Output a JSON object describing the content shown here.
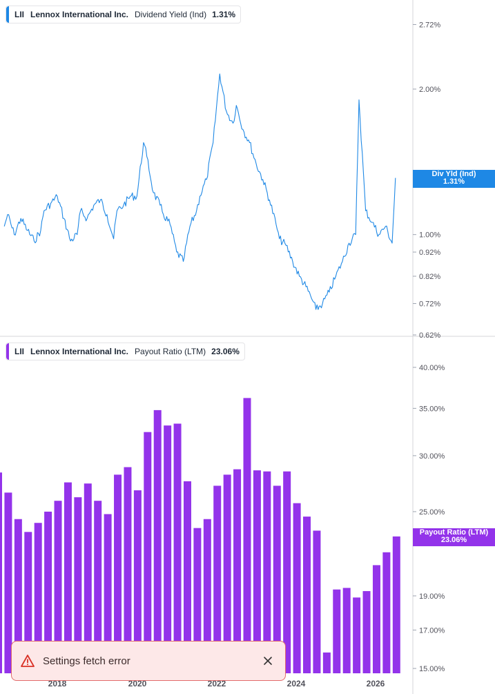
{
  "chart_data": [
    {
      "type": "line",
      "legend": {
        "ticker": "LII",
        "company": "Lennox International Inc.",
        "metric": "Dividend Yield (Ind)",
        "value": "1.31%"
      },
      "yaxis_scale": "log",
      "ylim": [
        0.62,
        3.0
      ],
      "y_ticks": [
        "2.72%",
        "2.00%",
        "1.00%",
        "0.92%",
        "0.82%",
        "0.72%",
        "0.62%"
      ],
      "y_tick_values": [
        2.72,
        2.0,
        1.0,
        0.92,
        0.82,
        0.72,
        0.62
      ],
      "last_value_tag": {
        "label": "Div Yld (Ind)",
        "value": "1.31%"
      },
      "series": [
        {
          "color": "#1e88e5",
          "x": [
            "2016-09",
            "2016-10",
            "2016-12",
            "2017-02",
            "2017-04",
            "2017-06",
            "2017-08",
            "2017-09",
            "2017-11",
            "2018-01",
            "2018-03",
            "2018-05",
            "2018-07",
            "2018-08",
            "2018-10",
            "2018-12",
            "2019-02",
            "2019-04",
            "2019-06",
            "2019-07",
            "2019-09",
            "2019-11",
            "2020-01",
            "2020-03",
            "2020-04",
            "2020-06",
            "2020-08",
            "2020-09",
            "2020-11",
            "2021-01",
            "2021-03",
            "2021-05",
            "2021-07",
            "2021-08",
            "2021-10",
            "2021-12",
            "2022-02",
            "2022-04",
            "2022-06",
            "2022-07",
            "2022-09",
            "2022-11",
            "2023-01",
            "2023-03",
            "2023-05",
            "2023-07",
            "2023-08",
            "2023-10",
            "2023-12",
            "2024-02",
            "2024-04",
            "2024-06",
            "2024-07",
            "2024-09",
            "2024-11",
            "2025-01",
            "2025-03",
            "2025-05",
            "2025-07",
            "2025-08",
            "2025-10",
            "2025-12",
            "2026-02",
            "2026-04",
            "2026-06",
            "2026-07"
          ],
          "values": [
            1.04,
            1.1,
            1.0,
            1.08,
            1.02,
            0.97,
            1.02,
            1.12,
            1.16,
            1.2,
            1.08,
            0.97,
            1.0,
            1.12,
            1.08,
            1.15,
            1.18,
            1.1,
            0.98,
            1.12,
            1.15,
            1.2,
            1.2,
            1.55,
            1.45,
            1.22,
            1.15,
            1.1,
            1.05,
            0.92,
            0.88,
            1.04,
            1.12,
            1.2,
            1.3,
            1.55,
            2.15,
            1.8,
            1.7,
            1.85,
            1.65,
            1.55,
            1.4,
            1.3,
            1.18,
            1.05,
            0.98,
            0.95,
            0.88,
            0.82,
            0.78,
            0.73,
            0.7,
            0.72,
            0.76,
            0.82,
            0.88,
            0.96,
            1.0,
            1.9,
            1.12,
            1.06,
            1.0,
            1.04,
            0.96,
            1.31
          ]
        }
      ]
    },
    {
      "type": "bar",
      "legend": {
        "ticker": "LII",
        "company": "Lennox International Inc.",
        "metric": "Payout Ratio (LTM)",
        "value": "23.06%"
      },
      "yaxis_scale": "log",
      "ylim": [
        15.0,
        42.0
      ],
      "y_ticks": [
        "40.00%",
        "35.00%",
        "30.00%",
        "25.00%",
        "19.00%",
        "17.00%",
        "15.00%"
      ],
      "y_tick_values": [
        40.0,
        35.0,
        30.0,
        25.0,
        19.0,
        17.0,
        15.0
      ],
      "x_ticks": [
        "2018",
        "2020",
        "2022",
        "2024",
        "2026"
      ],
      "last_value_tag": {
        "label": "Payout Ratio (LTM)",
        "value": "23.06%"
      },
      "series": [
        {
          "color": "#9333ea",
          "values": [
            28.4,
            26.6,
            24.4,
            23.4,
            24.1,
            25.0,
            25.9,
            27.5,
            26.2,
            27.4,
            25.9,
            24.8,
            28.2,
            28.9,
            26.8,
            32.4,
            34.8,
            33.1,
            33.3,
            27.6,
            23.7,
            24.4,
            27.2,
            28.2,
            28.7,
            36.2,
            28.6,
            28.5,
            27.2,
            28.5,
            25.7,
            24.6,
            23.5,
            15.8,
            19.4,
            19.5,
            18.9,
            19.3,
            21.0,
            21.9,
            23.06
          ]
        }
      ]
    }
  ],
  "toast": {
    "message": "Settings fetch error",
    "icon": "warning-triangle-icon",
    "close_icon": "close-icon"
  }
}
